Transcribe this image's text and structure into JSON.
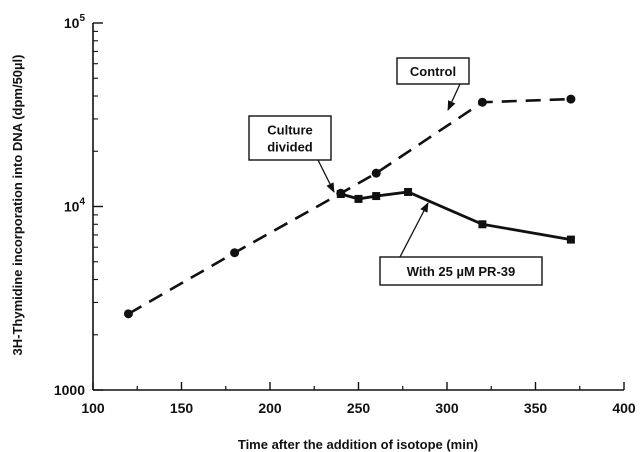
{
  "chart_data": {
    "type": "line",
    "xlabel": "Time after the addition of isotope (min)",
    "ylabel": "3H-Thymidine incorporation into DNA (dpm/50µl)",
    "xlim": [
      100,
      400
    ],
    "ylim": [
      1000,
      100000
    ],
    "yscale": "log",
    "grid": false,
    "x_ticks": [
      "100",
      "150",
      "200",
      "250",
      "300",
      "350",
      "400"
    ],
    "y_ticks": [
      {
        "label": "1000",
        "base": "1000",
        "exp": ""
      },
      {
        "label": "10^4",
        "base": "10",
        "exp": "4"
      },
      {
        "label": "10^5",
        "base": "10",
        "exp": "5"
      }
    ],
    "series": [
      {
        "key": "control",
        "marker": "circle",
        "line": "dashed",
        "points": [
          {
            "x": 120,
            "y": 2600,
            "marker": true
          },
          {
            "x": 180,
            "y": 5600,
            "marker": true
          },
          {
            "x": 240,
            "y": 11800,
            "marker": true
          },
          {
            "x": 260,
            "y": 15200,
            "marker": true
          },
          {
            "x": 320,
            "y": 37000,
            "marker": true
          },
          {
            "x": 370,
            "y": 38500,
            "marker": true
          }
        ]
      },
      {
        "key": "pr39",
        "marker": "square",
        "line": "solid",
        "points": [
          {
            "x": 240,
            "y": 11700
          },
          {
            "x": 250,
            "y": 11000
          },
          {
            "x": 260,
            "y": 11400
          },
          {
            "x": 278,
            "y": 12000
          },
          {
            "x": 320,
            "y": 8000
          },
          {
            "x": 370,
            "y": 6600
          }
        ]
      }
    ],
    "annotations": [
      {
        "key": "control",
        "lines": [
          "Control"
        ]
      },
      {
        "key": "divided",
        "lines": [
          "Culture",
          "divided"
        ]
      },
      {
        "key": "pr39",
        "lines": [
          "With  25 µM  PR-39"
        ]
      }
    ]
  }
}
